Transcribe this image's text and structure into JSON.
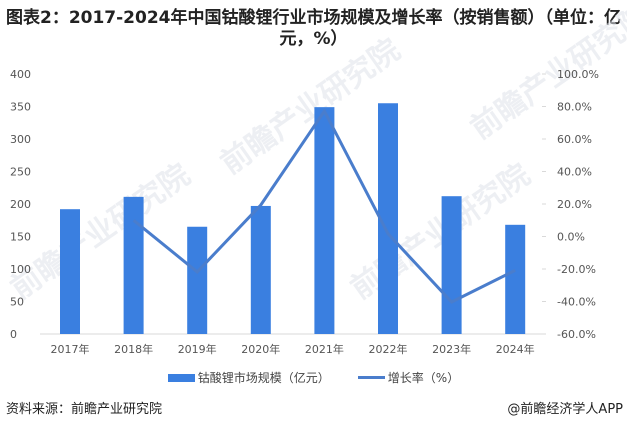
{
  "title": {
    "line1": "图表2：2017-2024年中国钴酸锂行业市场规模及增长率（按销售额）（单位：亿",
    "line2": "元，%）"
  },
  "legend": {
    "bar_label": "钴酸锂市场规模（亿元）",
    "line_label": "增长率（%）"
  },
  "footer": {
    "source": "资料来源：前瞻产业研究院",
    "credit": "@前瞻经济学人APP"
  },
  "watermark": "前瞻产业研究院",
  "colors": {
    "bar": "#3a7fe0",
    "line": "#4a7dcc",
    "axis": "#d9d9d9"
  },
  "chart_data": {
    "type": "bar+line",
    "title": "图表2：2017-2024年中国钴酸锂行业市场规模及增长率（按销售额）（单位：亿元，%）",
    "categories": [
      "2017年",
      "2018年",
      "2019年",
      "2020年",
      "2021年",
      "2022年",
      "2023年",
      "2024年"
    ],
    "series": [
      {
        "name": "钴酸锂市场规模（亿元）",
        "type": "bar",
        "axis": "left",
        "values": [
          192,
          211,
          165,
          197,
          349,
          355,
          212,
          168
        ]
      },
      {
        "name": "增长率（%）",
        "type": "line",
        "axis": "right",
        "values": [
          null,
          10.0,
          -21.8,
          19.4,
          77.2,
          1.7,
          -40.3,
          -20.8
        ]
      }
    ],
    "left_axis": {
      "ylim": [
        0,
        400
      ],
      "ticks": [
        "0",
        "50",
        "100",
        "150",
        "200",
        "250",
        "300",
        "350",
        "400"
      ]
    },
    "right_axis": {
      "ylim": [
        -60,
        100
      ],
      "ticks": [
        "-60.0%",
        "-40.0%",
        "-20.0%",
        "0.0%",
        "20.0%",
        "40.0%",
        "60.0%",
        "80.0%",
        "100.0%"
      ]
    },
    "xlabel": "",
    "ylabel": "",
    "grid": false,
    "legend_position": "bottom"
  }
}
